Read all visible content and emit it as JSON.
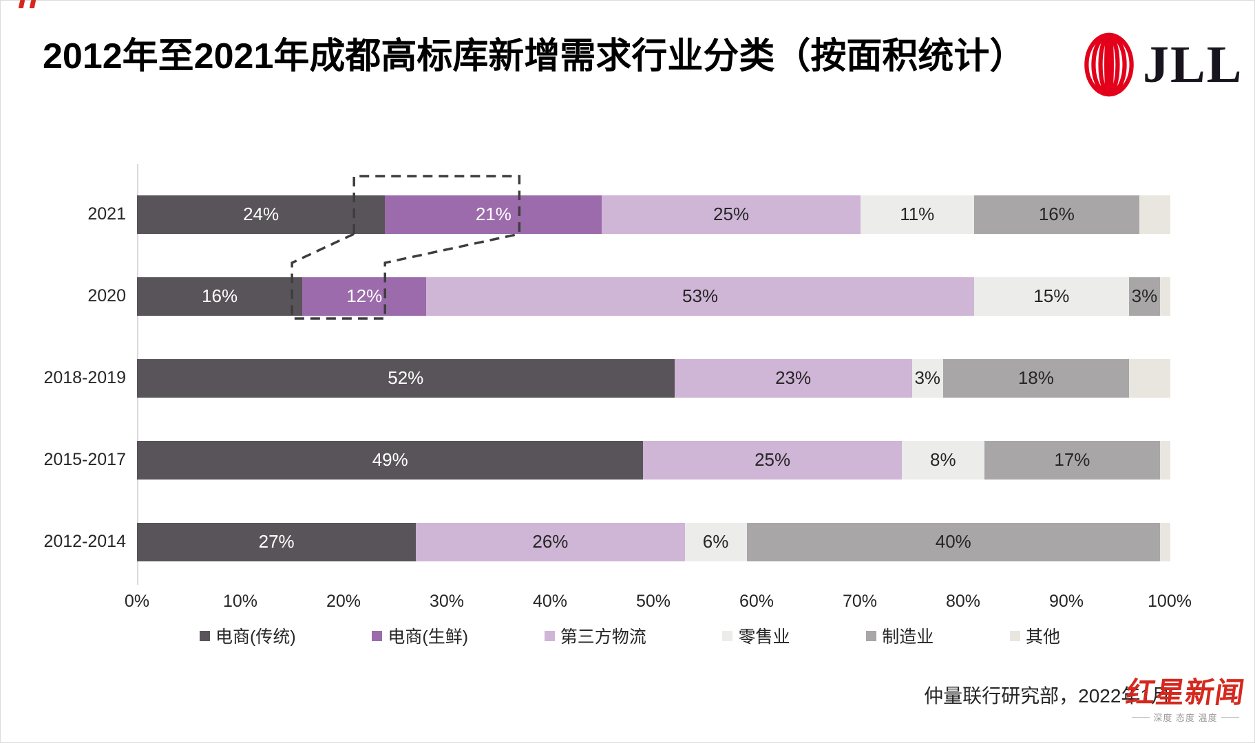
{
  "title": "2012年至2021年成都高标库新增需求行业分类（按面积统计）",
  "logo": {
    "text": "JLL"
  },
  "source_note": "仲量联行研究部，2022年1月",
  "watermark": {
    "name": "红星新闻",
    "tagline": "深度 态度 温度"
  },
  "chart_data": {
    "type": "bar",
    "orientation": "horizontal",
    "stacked": true,
    "title": "2012年至2021年成都高标库新增需求行业分类（按面积统计）",
    "categories": [
      "2021",
      "2020",
      "2018-2019",
      "2015-2017",
      "2012-2014"
    ],
    "series": [
      {
        "name": "电商(传统)",
        "color": "#595459",
        "label_color": "white",
        "values": [
          24,
          16,
          52,
          49,
          27
        ]
      },
      {
        "name": "电商(生鲜)",
        "color": "#9c6bab",
        "label_color": "white",
        "values": [
          21,
          12,
          0,
          0,
          0
        ]
      },
      {
        "name": "第三方物流",
        "color": "#cfb5d6",
        "label_color": "dark",
        "values": [
          25,
          53,
          23,
          25,
          26
        ]
      },
      {
        "name": "零售业",
        "color": "#ececeb",
        "label_color": "dark",
        "values": [
          11,
          15,
          3,
          8,
          6
        ]
      },
      {
        "name": "制造业",
        "color": "#a9a6a7",
        "label_color": "dark",
        "values": [
          16,
          3,
          18,
          17,
          40
        ]
      },
      {
        "name": "其他",
        "color": "#e9e6df",
        "label_color": "none",
        "values": [
          3,
          1,
          4,
          1,
          1
        ]
      }
    ],
    "value_suffix": "%",
    "xticks": [
      "0%",
      "10%",
      "20%",
      "30%",
      "40%",
      "50%",
      "60%",
      "70%",
      "80%",
      "90%",
      "100%"
    ],
    "xlim": [
      0,
      100
    ],
    "grid": false,
    "legend_position": "bottom",
    "annotation": "dashed callout linking the 2021 电商(生鲜) 21% segment to the 2020 12% segment"
  }
}
